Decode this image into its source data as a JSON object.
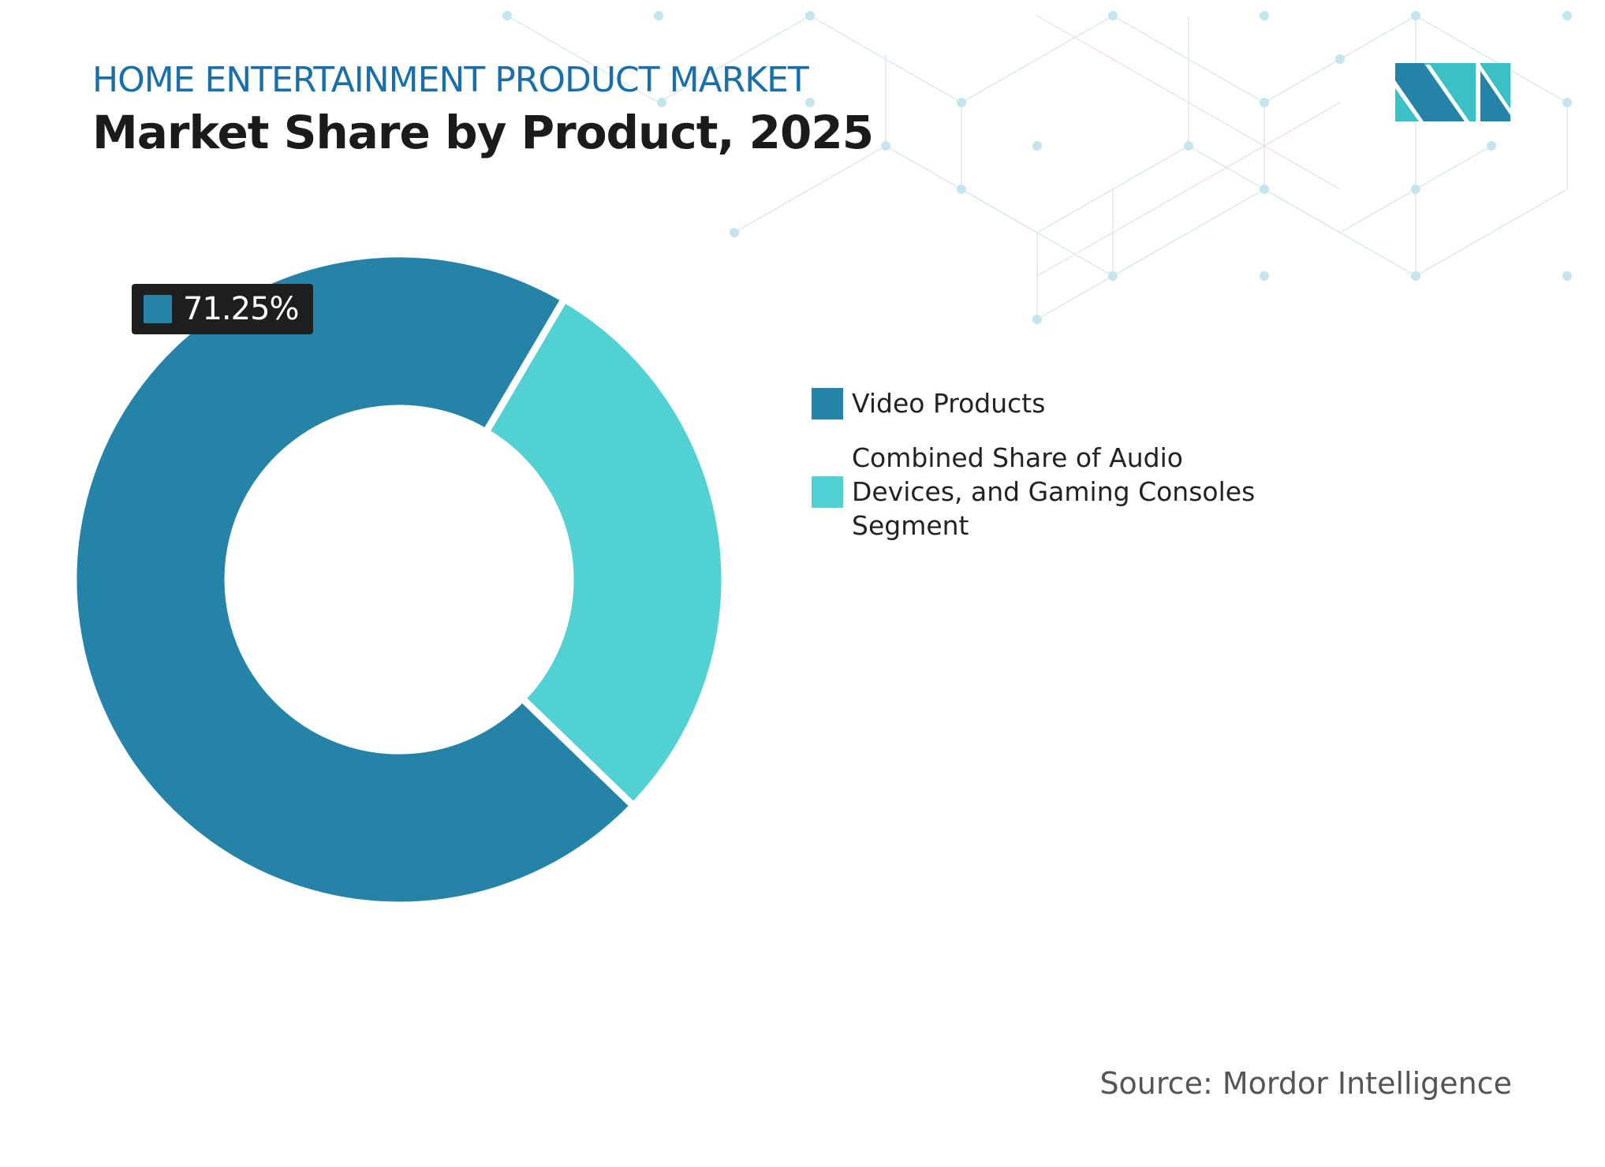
{
  "header": {
    "kicker": "HOME ENTERTAINMENT PRODUCT MARKET",
    "title": "Market Share by Product, 2025"
  },
  "colors": {
    "kicker": "#1a6fa8",
    "video": "#2683a8",
    "other": "#52d1d3",
    "badge_bg": "#1e1e1e"
  },
  "chart_data": {
    "type": "pie",
    "donut": true,
    "categories": [
      "Video Products",
      "Combined Share of Audio Devices, and Gaming Consoles Segment"
    ],
    "values": [
      71.25,
      28.75
    ],
    "colors": [
      "#2683a8",
      "#52d1d3"
    ],
    "data_labels": [
      "71.25%"
    ],
    "legend_position": "right"
  },
  "badge": {
    "label": "71.25%"
  },
  "legend": [
    {
      "label": "Video Products"
    },
    {
      "label": "Combined Share of Audio Devices, and Gaming Consoles Segment"
    }
  ],
  "source": "Source: Mordor Intelligence",
  "logo": {
    "text": "MI"
  }
}
